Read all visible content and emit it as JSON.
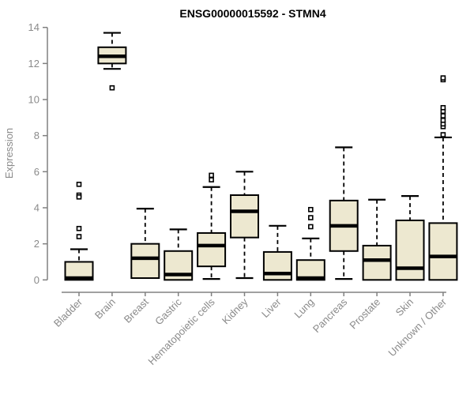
{
  "chart_data": {
    "type": "boxplot",
    "title": "ENSG00000015592 - STMN4",
    "ylabel": "Expression",
    "xlabel": "",
    "ylim": [
      0,
      14
    ],
    "yticks": [
      0,
      2,
      4,
      6,
      8,
      10,
      12,
      14
    ],
    "grid": false,
    "legend": false,
    "box_fill_color": "#EDE8D0",
    "box_border_color": "#000000",
    "median_color": "#000000",
    "axis_line_color": "#808080",
    "axis_text_color": "#8A8A8A",
    "categories": [
      "Bladder",
      "Brain",
      "Breast",
      "Gastric",
      "Hematopoietic cells",
      "Kidney",
      "Liver",
      "Lung",
      "Pancreas",
      "Prostate",
      "Skin",
      "Unknown / Other"
    ],
    "series": [
      {
        "name": "Bladder",
        "low": 0,
        "q1": 0,
        "median": 0.1,
        "q3": 1.0,
        "high": 1.7,
        "outliers": [
          5.3,
          4.7,
          4.6,
          2.85,
          2.4
        ]
      },
      {
        "name": "Brain",
        "low": 11.7,
        "q1": 12.0,
        "median": 12.4,
        "q3": 12.9,
        "high": 13.7,
        "outliers": [
          10.65
        ]
      },
      {
        "name": "Breast",
        "low": 0.1,
        "q1": 0.1,
        "median": 1.2,
        "q3": 2.0,
        "high": 3.95,
        "outliers": []
      },
      {
        "name": "Gastric",
        "low": 0,
        "q1": 0,
        "median": 0.3,
        "q3": 1.6,
        "high": 2.8,
        "outliers": []
      },
      {
        "name": "Hematopoietic cells",
        "low": 0.05,
        "q1": 0.75,
        "median": 1.9,
        "q3": 2.6,
        "high": 5.15,
        "outliers": [
          5.8,
          5.55
        ]
      },
      {
        "name": "Kidney",
        "low": 0.1,
        "q1": 2.35,
        "median": 3.8,
        "q3": 4.7,
        "high": 6.0,
        "outliers": []
      },
      {
        "name": "Liver",
        "low": 0,
        "q1": 0,
        "median": 0.35,
        "q3": 1.55,
        "high": 3.0,
        "outliers": []
      },
      {
        "name": "Lung",
        "low": 0,
        "q1": 0,
        "median": 0.1,
        "q3": 1.1,
        "high": 2.3,
        "outliers": [
          3.9,
          3.45,
          2.95
        ]
      },
      {
        "name": "Pancreas",
        "low": 0.05,
        "q1": 1.6,
        "median": 3.0,
        "q3": 4.4,
        "high": 7.35,
        "outliers": []
      },
      {
        "name": "Prostate",
        "low": 0,
        "q1": 0,
        "median": 1.1,
        "q3": 1.9,
        "high": 4.45,
        "outliers": []
      },
      {
        "name": "Skin",
        "low": 0,
        "q1": 0,
        "median": 0.65,
        "q3": 3.3,
        "high": 4.65,
        "outliers": []
      },
      {
        "name": "Unknown / Other",
        "low": 0,
        "q1": 0,
        "median": 1.3,
        "q3": 3.15,
        "high": 7.9,
        "outliers": [
          8.05,
          8.5,
          8.65,
          8.85,
          9.1,
          9.35,
          9.55,
          11.1,
          11.2
        ]
      }
    ]
  }
}
